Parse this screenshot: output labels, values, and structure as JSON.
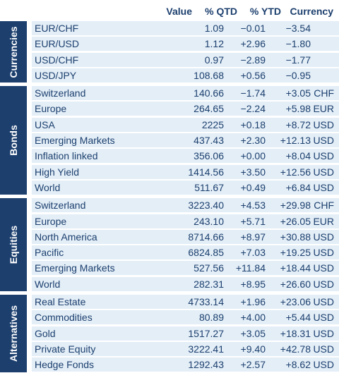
{
  "header": {
    "value": "Value",
    "qtd": "% QTD",
    "ytd": "% YTD",
    "currency": "Currency"
  },
  "groups": [
    {
      "label": "Currencies",
      "rows": [
        {
          "name": "EUR/CHF",
          "value": "1.09",
          "qtd": "-0.01",
          "ytd": "-3.54",
          "currency": ""
        },
        {
          "name": "EUR/USD",
          "value": "1.12",
          "qtd": "+2.96",
          "ytd": "-1.80",
          "currency": ""
        },
        {
          "name": "USD/CHF",
          "value": "0.97",
          "qtd": "-2.89",
          "ytd": "-1.77",
          "currency": ""
        },
        {
          "name": "USD/JPY",
          "value": "108.68",
          "qtd": "+0.56",
          "ytd": "-0.95",
          "currency": ""
        }
      ]
    },
    {
      "label": "Bonds",
      "rows": [
        {
          "name": "Switzerland",
          "value": "140.66",
          "qtd": "-1.74",
          "ytd": "+3.05",
          "currency": "CHF"
        },
        {
          "name": "Europe",
          "value": "264.65",
          "qtd": "-2.24",
          "ytd": "+5.98",
          "currency": "EUR"
        },
        {
          "name": "USA",
          "value": "2225",
          "qtd": "+0.18",
          "ytd": "+8.72",
          "currency": "USD"
        },
        {
          "name": "Emerging Markets",
          "value": "437.43",
          "qtd": "+2.30",
          "ytd": "+12.13",
          "currency": "USD"
        },
        {
          "name": "Inflation linked",
          "value": "356.06",
          "qtd": "+0.00",
          "ytd": "+8.04",
          "currency": "USD"
        },
        {
          "name": "High Yield",
          "value": "1414.56",
          "qtd": "+3.50",
          "ytd": "+12.56",
          "currency": "USD"
        },
        {
          "name": "World",
          "value": "511.67",
          "qtd": "+0.49",
          "ytd": "+6.84",
          "currency": "USD"
        }
      ]
    },
    {
      "label": "Equities",
      "rows": [
        {
          "name": "Switzerland",
          "value": "3223.40",
          "qtd": "+4.53",
          "ytd": "+29.98",
          "currency": "CHF"
        },
        {
          "name": "Europe",
          "value": "243.10",
          "qtd": "+5.71",
          "ytd": "+26.05",
          "currency": "EUR"
        },
        {
          "name": "North America",
          "value": "8714.66",
          "qtd": "+8.97",
          "ytd": "+30.88",
          "currency": "USD"
        },
        {
          "name": "Pacific",
          "value": "6824.85",
          "qtd": "+7.03",
          "ytd": "+19.25",
          "currency": "USD"
        },
        {
          "name": "Emerging Markets",
          "value": "527.56",
          "qtd": "+11.84",
          "ytd": "+18.44",
          "currency": "USD"
        },
        {
          "name": "World",
          "value": "282.31",
          "qtd": "+8.95",
          "ytd": "+26.60",
          "currency": "USD"
        }
      ]
    },
    {
      "label": "Alternatives",
      "rows": [
        {
          "name": "Real Estate",
          "value": "4733.14",
          "qtd": "+1.96",
          "ytd": "+23.06",
          "currency": "USD"
        },
        {
          "name": "Commodities",
          "value": "80.89",
          "qtd": "+4.00",
          "ytd": "+5.44",
          "currency": "USD"
        },
        {
          "name": "Gold",
          "value": "1517.27",
          "qtd": "+3.05",
          "ytd": "+18.31",
          "currency": "USD"
        },
        {
          "name": "Private Equity",
          "value": "3222.41",
          "qtd": "+9.40",
          "ytd": "+42.78",
          "currency": "USD"
        },
        {
          "name": "Hedge Fonds",
          "value": "1292.43",
          "qtd": "+2.57",
          "ytd": "+8.62",
          "currency": "USD"
        }
      ]
    }
  ]
}
